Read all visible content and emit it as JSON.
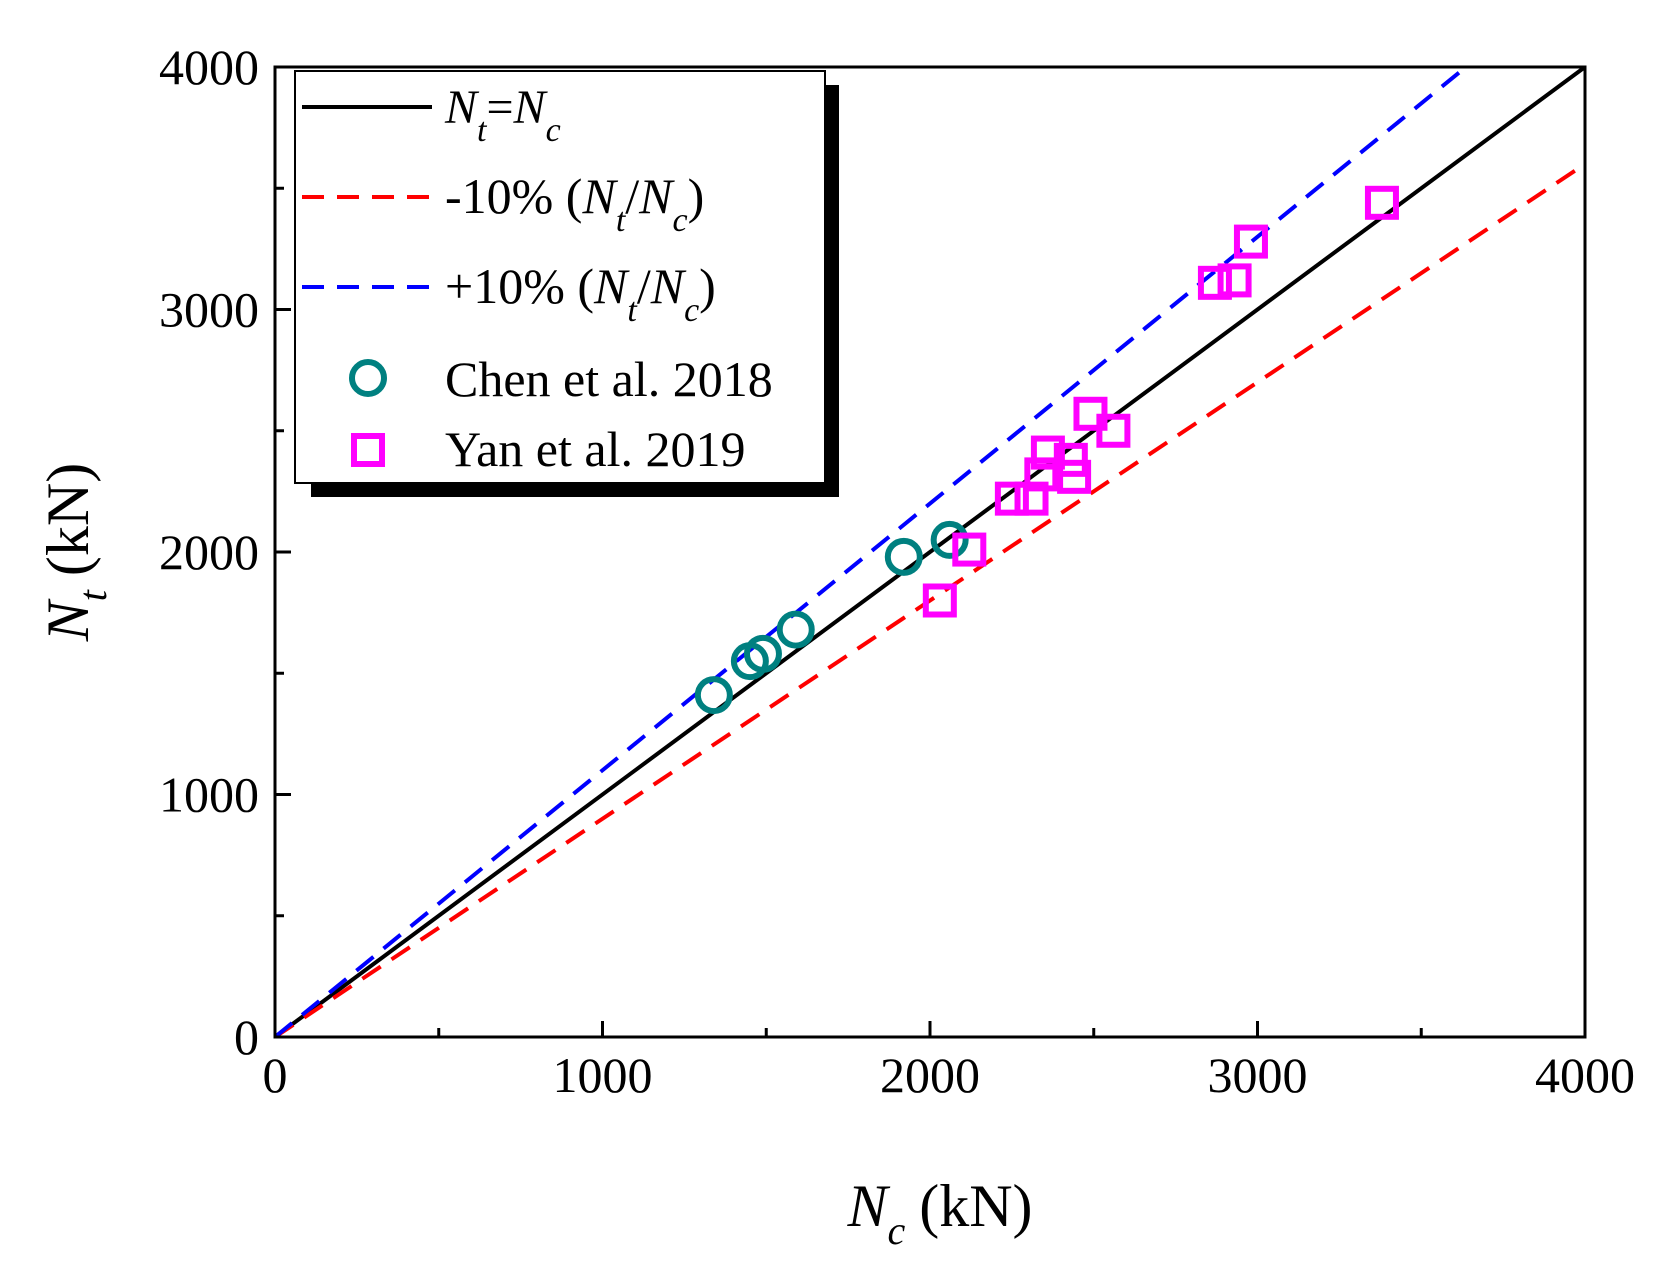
{
  "chart_data": {
    "type": "scatter",
    "title": "",
    "xlabel": {
      "symbol": "N",
      "sub": "c",
      "unit": "(kN)"
    },
    "ylabel": {
      "symbol": "N",
      "sub": "t",
      "unit": "(kN)"
    },
    "xlim": [
      0,
      4000
    ],
    "ylim": [
      0,
      4000
    ],
    "xticks": [
      0,
      1000,
      2000,
      3000,
      4000
    ],
    "yticks": [
      0,
      1000,
      2000,
      3000,
      4000
    ],
    "minor_step": 500,
    "grid": false,
    "legend_position": "top-left",
    "lines": [
      {
        "name": "N_t=N_c",
        "slope": 1.0,
        "color": "#000000",
        "style": "solid",
        "legend": {
          "a": "N",
          "b": "t",
          "c": "=",
          "d": "N",
          "e": "c"
        }
      },
      {
        "name": "-10% (N_t/N_c)",
        "slope": 0.9,
        "color": "#ff0000",
        "style": "dashed",
        "legend": {
          "pre": "-10% (",
          "a": "N",
          "b": "t",
          "c": "/",
          "d": "N",
          "e": "c",
          "post": ")"
        }
      },
      {
        "name": "+10% (N_t/N_c)",
        "slope": 1.1,
        "color": "#0000ff",
        "style": "dashed",
        "legend": {
          "pre": "+10% (",
          "a": "N",
          "b": "t",
          "c": "/",
          "d": "N",
          "e": "c",
          "post": ")"
        }
      }
    ],
    "series": [
      {
        "name": "Chen et al. 2018",
        "marker": "circle",
        "color": "#008080",
        "x": [
          1340,
          1450,
          1490,
          1590,
          1920,
          2060
        ],
        "y": [
          1410,
          1550,
          1580,
          1680,
          1980,
          2050
        ]
      },
      {
        "name": "Yan et al. 2019",
        "marker": "square",
        "color": "#ff00ff",
        "x": [
          2030,
          2120,
          2250,
          2310,
          2340,
          2360,
          2430,
          2440,
          2490,
          2560,
          2870,
          2930,
          2980,
          3380
        ],
        "y": [
          1800,
          2010,
          2220,
          2220,
          2320,
          2410,
          2380,
          2310,
          2570,
          2500,
          3110,
          3120,
          3280,
          3440
        ]
      }
    ]
  }
}
